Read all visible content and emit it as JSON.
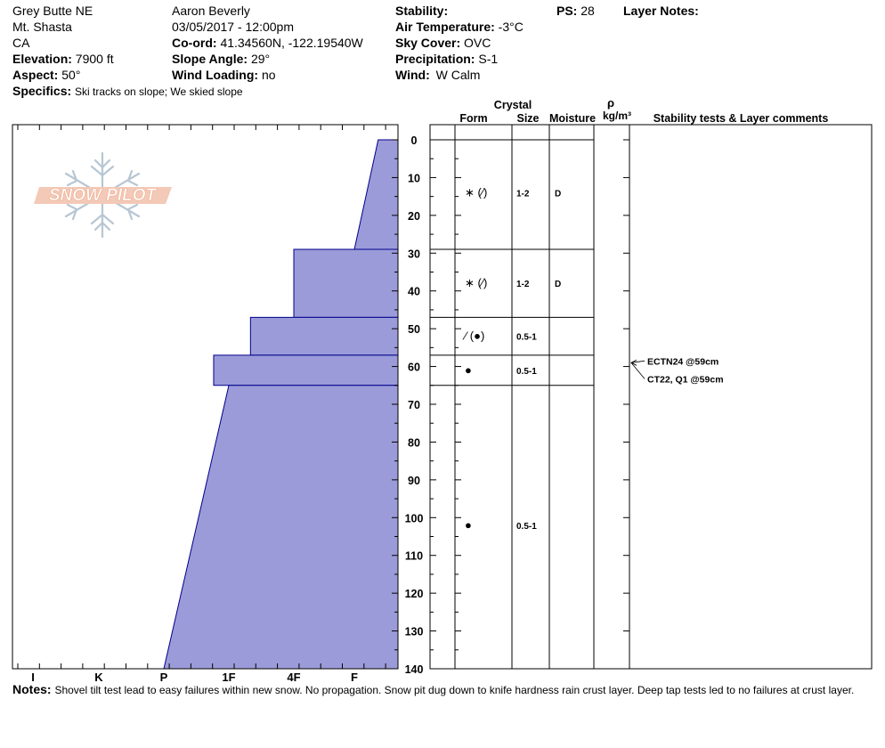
{
  "header": {
    "location": "Grey Butte NE",
    "mountain": "Mt. Shasta",
    "state": "CA",
    "elevation_label": "Elevation:",
    "elevation_value": "7900 ft",
    "aspect_label": "Aspect:",
    "aspect_value": "50°",
    "specifics_label": "Specifics:",
    "specifics_value": "Ski tracks on slope; We skied slope",
    "observer": "Aaron Beverly",
    "datetime": "03/05/2017 - 12:00pm",
    "coord_label": "Co-ord:",
    "coord_value": "41.34560N, -122.19540W",
    "slope_label": "Slope Angle:",
    "slope_value": "29°",
    "wind_loading_label": "Wind Loading:",
    "wind_loading_value": "no",
    "stability_label": "Stability:",
    "air_temp_label": "Air Temperature:",
    "air_temp_value": "-3°C",
    "sky_label": "Sky Cover:",
    "sky_value": "OVC",
    "precip_label": "Precipitation:",
    "precip_value": "S-1",
    "wind_label": "Wind:",
    "wind_value": "W Calm",
    "ps_label": "PS:",
    "ps_value": "28",
    "layer_notes_label": "Layer Notes:"
  },
  "logo": {
    "text": "SNOW PILOT"
  },
  "columns": {
    "crystal": "Crystal",
    "form": "Form",
    "size": "Size",
    "moisture": "Moisture",
    "rho": "ρ",
    "density_unit": "kg/m³",
    "comments": "Stability tests & Layer comments"
  },
  "notes": {
    "label": "Notes:",
    "text": "Shovel tilt test lead to easy failures within new snow. No propagation. Snow pit dug down to knife hardness rain crust layer. Deep tap tests led to no failures at crust layer."
  },
  "chart_data": {
    "type": "area",
    "title": "",
    "xlabel": "",
    "ylabel": "",
    "hardness_ticks": [
      "I",
      "K",
      "P",
      "1F",
      "4F",
      "F"
    ],
    "depth_ticks": [
      0,
      10,
      20,
      30,
      40,
      50,
      60,
      70,
      80,
      90,
      100,
      110,
      120,
      130,
      140
    ],
    "ylim": [
      0,
      140
    ],
    "fill_color": "#9b9bd9",
    "line_color": "#00008b",
    "hardness_profile": [
      {
        "top": 0,
        "bottom": 29,
        "hardness_top": "F-",
        "hardness_bottom": "F"
      },
      {
        "top": 29,
        "bottom": 47,
        "hardness_top": "4F",
        "hardness_bottom": "4F"
      },
      {
        "top": 47,
        "bottom": 57,
        "hardness_top": "1F-",
        "hardness_bottom": "1F-"
      },
      {
        "top": 57,
        "bottom": 65,
        "hardness_top": "1F+",
        "hardness_bottom": "1F+"
      },
      {
        "top": 65,
        "bottom": 140,
        "hardness_top": "1F",
        "hardness_bottom": "P"
      }
    ],
    "layers": [
      {
        "top": 0,
        "bottom": 29,
        "label_depth": 14,
        "form": "∗ (⁄)",
        "size": "1-2",
        "moisture": "D"
      },
      {
        "top": 29,
        "bottom": 47,
        "label_depth": 38,
        "form": "∗ (⁄)",
        "size": "1-2",
        "moisture": "D"
      },
      {
        "top": 47,
        "bottom": 57,
        "label_depth": 52,
        "form": "⁄ (●)",
        "size": "0.5-1",
        "moisture": ""
      },
      {
        "top": 57,
        "bottom": 65,
        "label_depth": 61,
        "form": "●",
        "size": "0.5-1",
        "moisture": ""
      },
      {
        "top": 65,
        "bottom": 140,
        "label_depth": 102,
        "form": "●",
        "size": "0.5-1",
        "moisture": ""
      }
    ],
    "tests": [
      {
        "depth": 59,
        "text": "ECTN24 @59cm"
      },
      {
        "depth": 59,
        "text": "CT22, Q1 @59cm"
      }
    ]
  }
}
